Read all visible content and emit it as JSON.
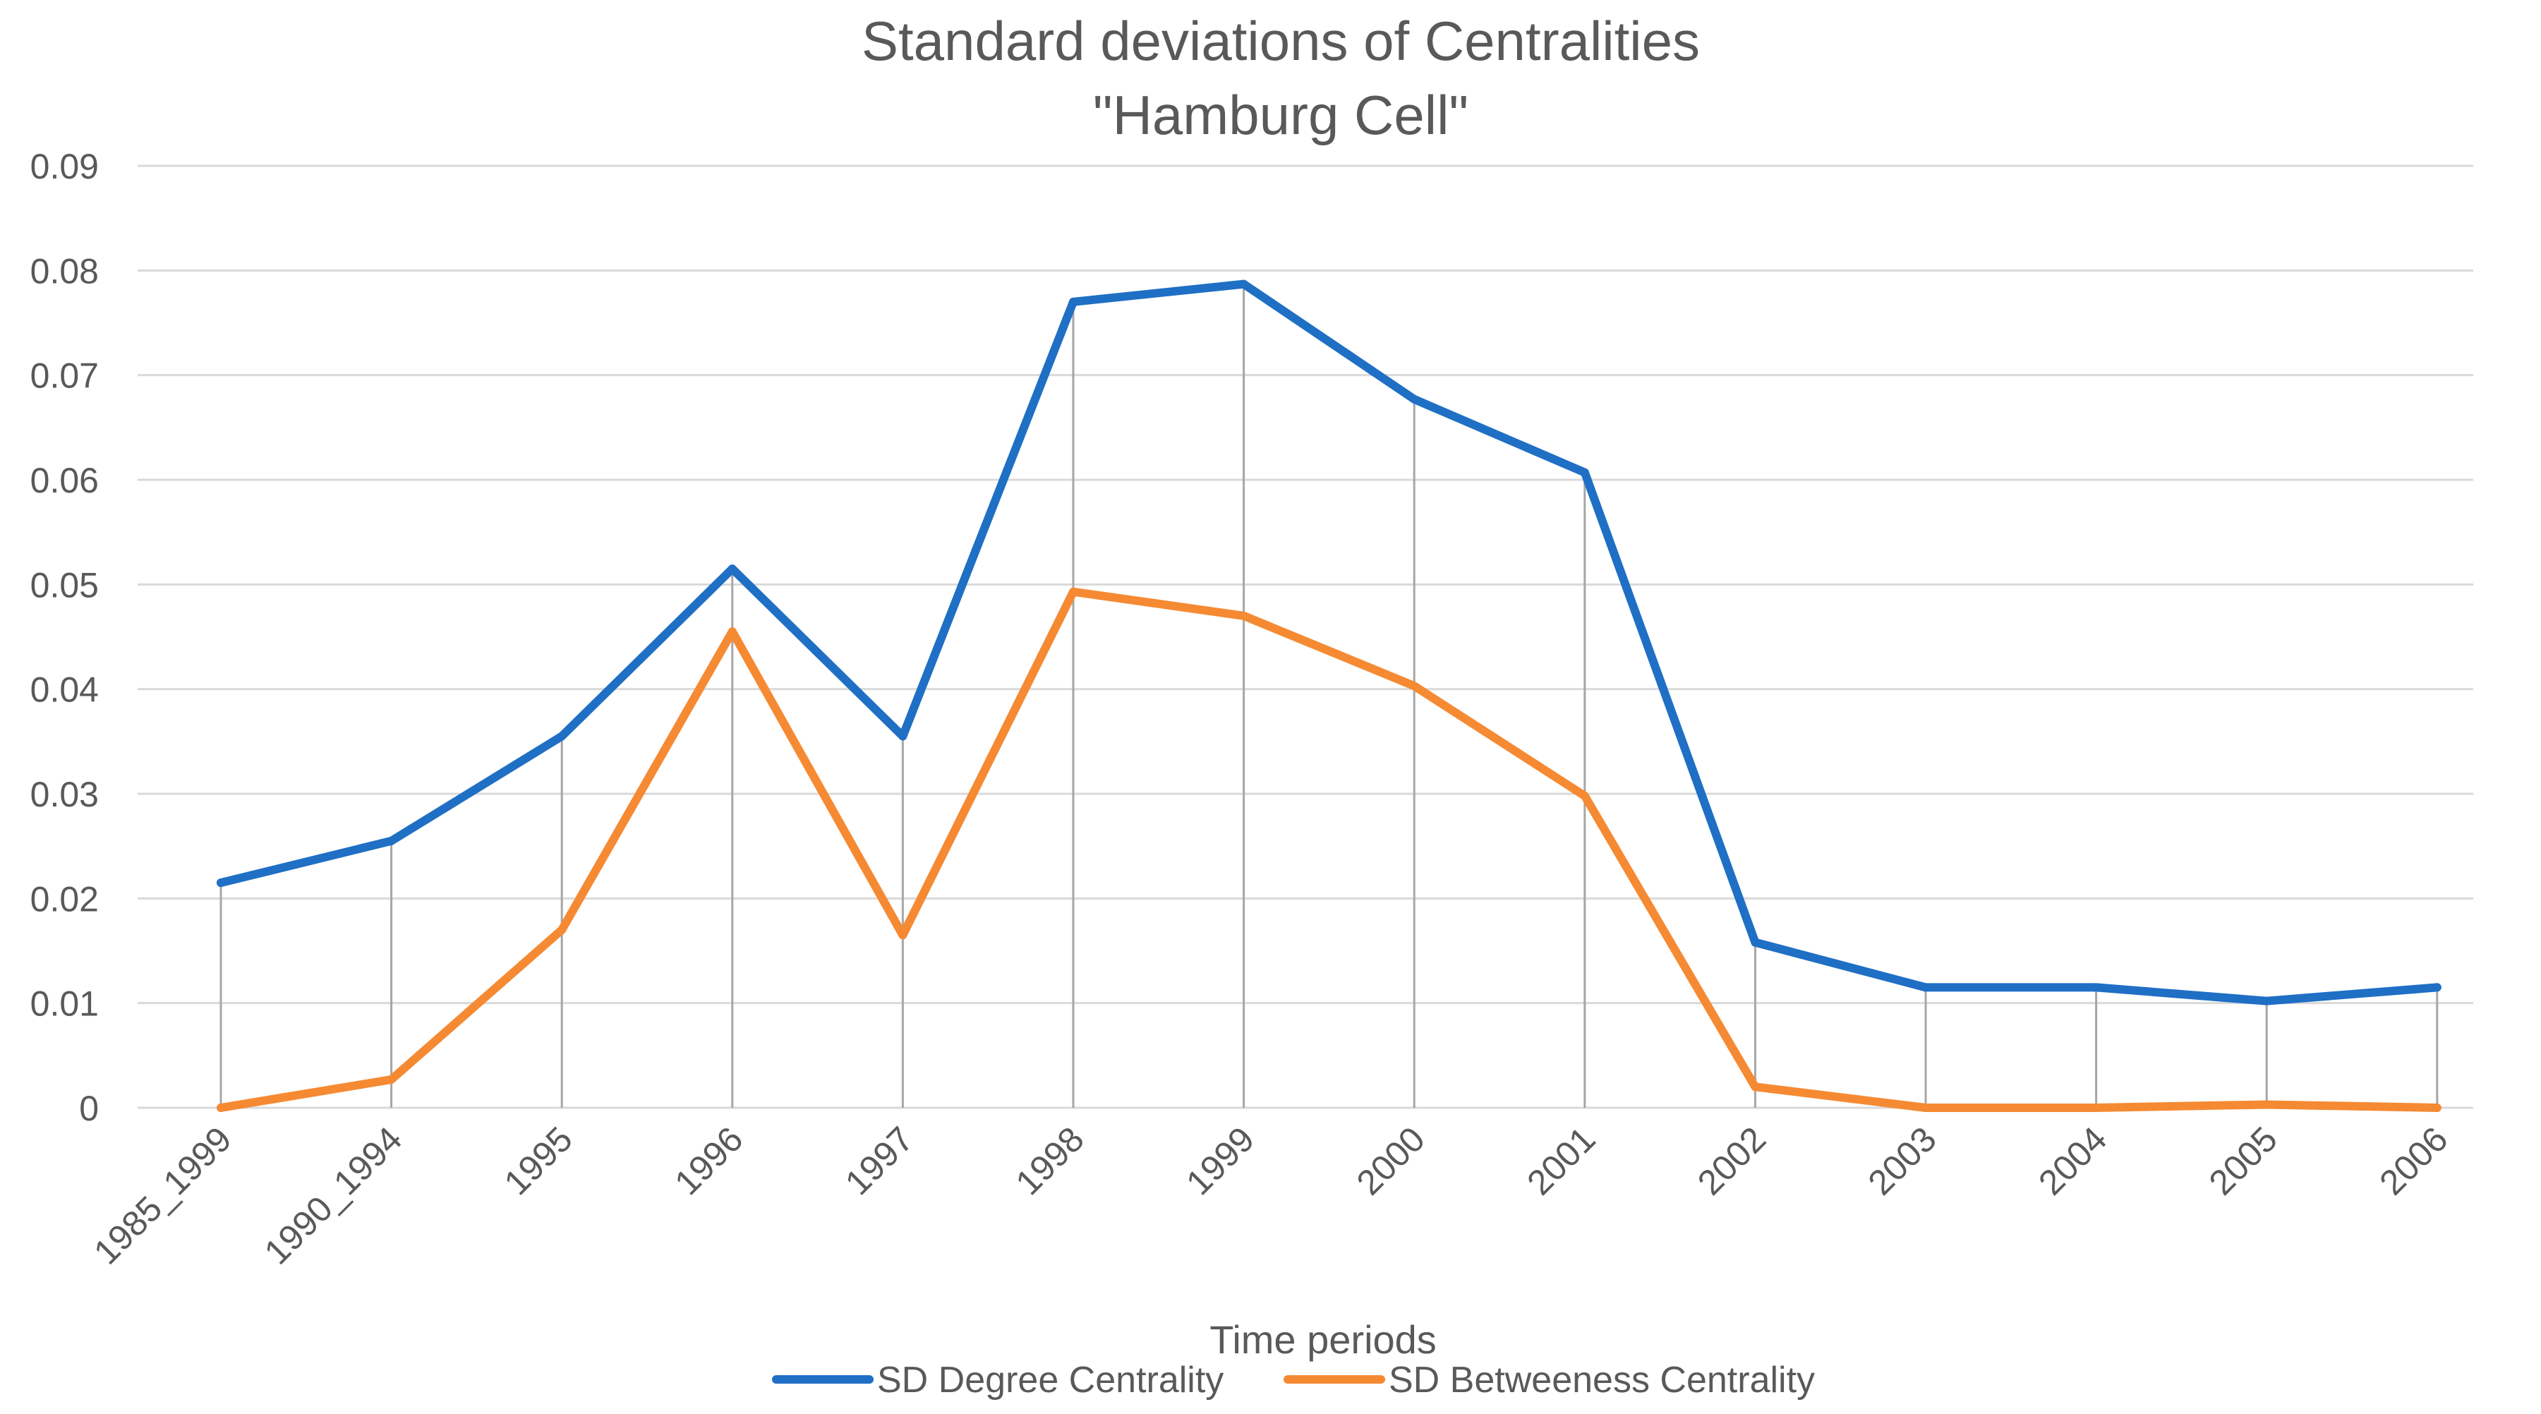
{
  "chart_data": {
    "type": "line",
    "title": [
      "Standard deviations of Centralities",
      "\"Hamburg Cell\""
    ],
    "xlabel": "Time periods",
    "ylabel": "",
    "ylim": [
      0,
      0.09
    ],
    "yticks": [
      "0",
      "0.01",
      "0.02",
      "0.03",
      "0.04",
      "0.05",
      "0.06",
      "0.07",
      "0.08",
      "0.09"
    ],
    "grid": true,
    "drop_lines": true,
    "legend_position": "bottom",
    "categories": [
      "1985_1999",
      "1990_1994",
      "1995",
      "1996",
      "1997",
      "1998",
      "1999",
      "2000",
      "2001",
      "2002",
      "2003",
      "2004",
      "2005",
      "2006"
    ],
    "series": [
      {
        "name": "SD Degree Centrality",
        "color": "#1f6fc5",
        "values": [
          0.0215,
          0.0255,
          0.0355,
          0.0515,
          0.0355,
          0.077,
          0.0787,
          0.0677,
          0.0607,
          0.0158,
          0.0115,
          0.0115,
          0.0102,
          0.0115
        ]
      },
      {
        "name": "SD Betweeness Centrality",
        "color": "#f58a33",
        "values": [
          0.0,
          0.0027,
          0.017,
          0.0455,
          0.0165,
          0.0493,
          0.047,
          0.0403,
          0.0298,
          0.002,
          0.0,
          0.0,
          0.0003,
          0.0
        ]
      }
    ]
  }
}
